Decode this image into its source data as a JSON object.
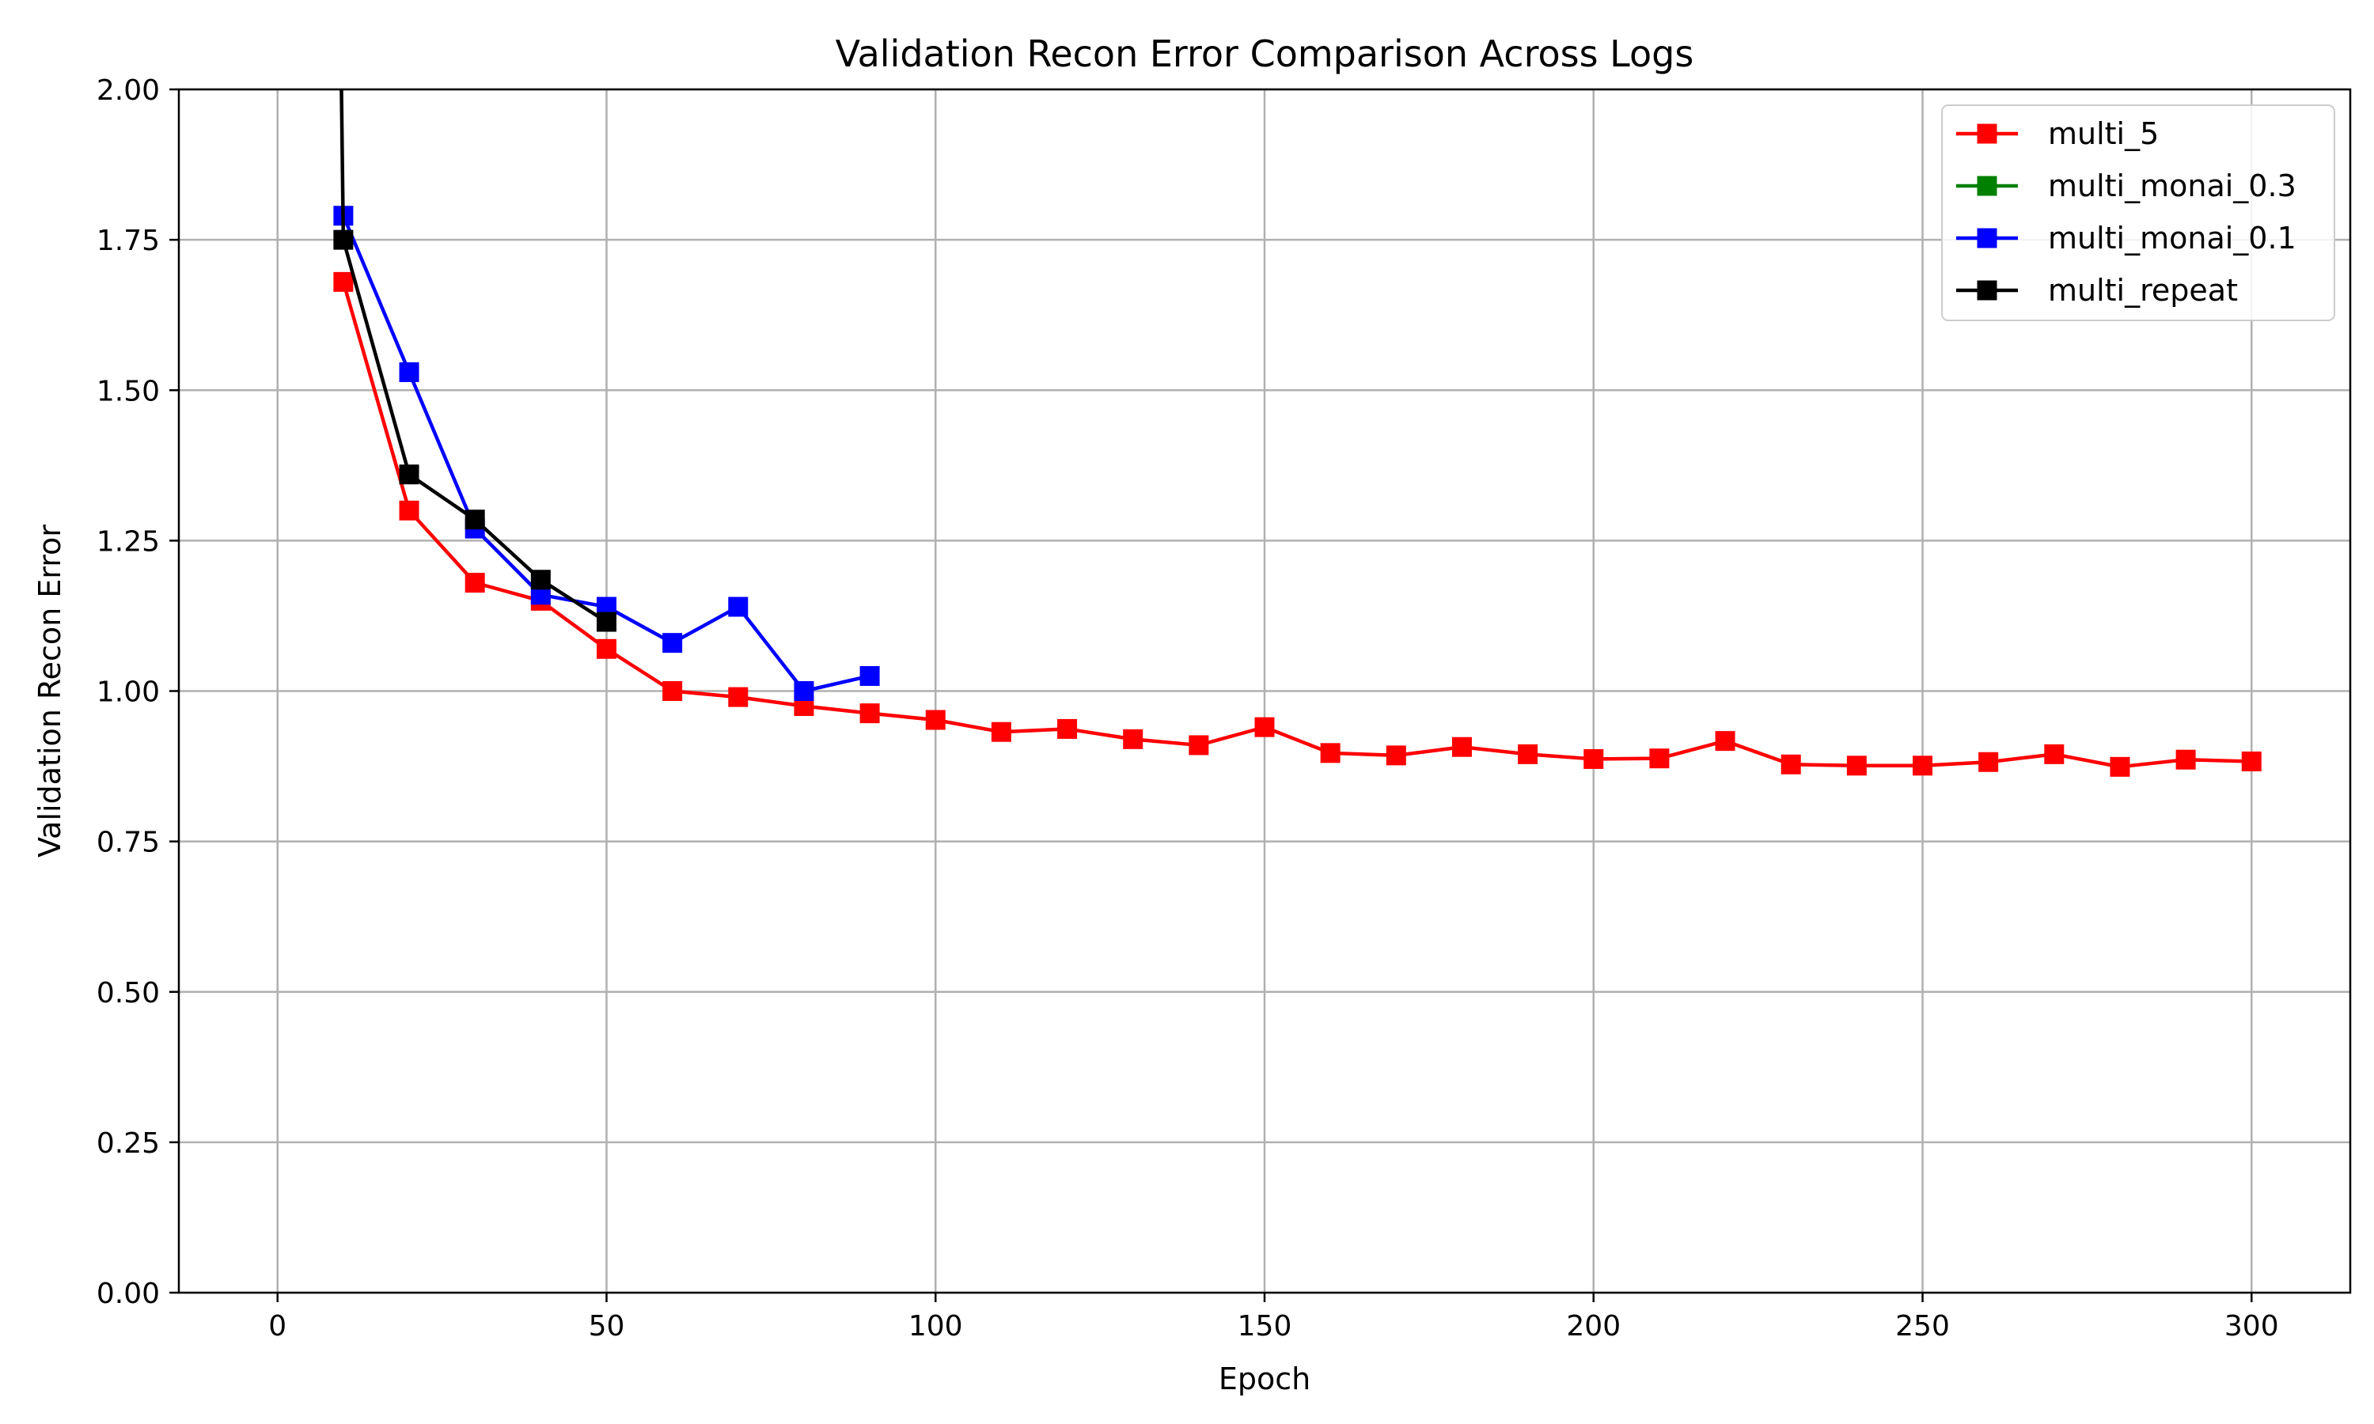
{
  "chart_data": {
    "type": "line",
    "title": "Validation Recon Error Comparison Across Logs",
    "xlabel": "Epoch",
    "ylabel": "Validation Recon Error",
    "xlim": [
      -15,
      315
    ],
    "ylim": [
      0,
      2.0
    ],
    "xticks": [
      0,
      50,
      100,
      150,
      200,
      250,
      300
    ],
    "xtick_labels": [
      "0",
      "50",
      "100",
      "150",
      "200",
      "250",
      "300"
    ],
    "yticks": [
      0,
      0.25,
      0.5,
      0.75,
      1.0,
      1.25,
      1.5,
      1.75,
      2.0
    ],
    "ytick_labels": [
      "0.00",
      "0.25",
      "0.50",
      "0.75",
      "1.00",
      "1.25",
      "1.50",
      "1.75",
      "2.00"
    ],
    "grid": true,
    "legend_position": "top-right",
    "series": [
      {
        "name": "multi_5",
        "color": "#ff0000",
        "marker": "square",
        "x": [
          10,
          20,
          30,
          40,
          50,
          60,
          70,
          80,
          90,
          100,
          110,
          120,
          130,
          140,
          150,
          160,
          170,
          180,
          190,
          200,
          210,
          220,
          230,
          240,
          250,
          260,
          270,
          280,
          290,
          300
        ],
        "y": [
          1.68,
          1.3,
          1.18,
          1.15,
          1.07,
          1.0,
          0.99,
          0.975,
          0.963,
          0.952,
          0.932,
          0.937,
          0.92,
          0.91,
          0.94,
          0.897,
          0.893,
          0.907,
          0.895,
          0.887,
          0.888,
          0.917,
          0.878,
          0.876,
          0.876,
          0.882,
          0.895,
          0.874,
          0.886,
          0.883
        ]
      },
      {
        "name": "multi_monai_0.3",
        "color": "#008000",
        "marker": "square",
        "x": [],
        "y": []
      },
      {
        "name": "multi_monai_0.1",
        "color": "#0000ff",
        "marker": "square",
        "x": [
          10,
          20,
          30,
          40,
          50,
          60,
          70,
          80,
          90
        ],
        "y": [
          1.79,
          1.53,
          1.27,
          1.16,
          1.14,
          1.08,
          1.14,
          1.0,
          1.025
        ]
      },
      {
        "name": "multi_repeat",
        "color": "#000000",
        "marker": "square",
        "x": [
          10,
          20,
          30,
          40,
          50
        ],
        "y": [
          1.75,
          1.36,
          1.285,
          1.185,
          1.115
        ],
        "offscale_start": {
          "x": 9.7,
          "y": 2.0
        }
      }
    ]
  }
}
